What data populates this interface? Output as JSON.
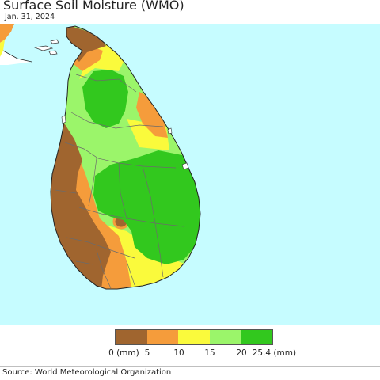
{
  "header": {
    "title": "Surface Soil Moisture (WMO)",
    "date": "Jan. 31, 2024"
  },
  "map": {
    "region": "Sri Lanka",
    "ocean_color": "#c6fcff",
    "border_color": "#6b6b6b"
  },
  "legend": {
    "unit_left": "0 (mm)",
    "ticks": [
      "5",
      "10",
      "15",
      "20"
    ],
    "unit_right": "25.4 (mm)",
    "colors": [
      "#a0652f",
      "#f59c3b",
      "#fafa3c",
      "#9bf56a",
      "#32c81e"
    ]
  },
  "footer": {
    "source": "Source: World Meteorological Organization"
  }
}
